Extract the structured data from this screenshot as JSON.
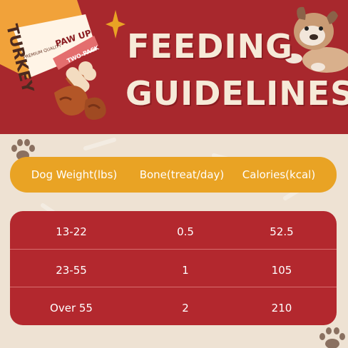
{
  "title": {
    "line1": "FEEDING",
    "line2": "GUIDELINES"
  },
  "package": {
    "brand": "PAW UP",
    "side_text": "TURKEY",
    "subtext": "PREMIUM QUALITY",
    "ribbon": "TWO-PACK"
  },
  "table": {
    "headers": [
      "Dog Weight(lbs)",
      "Bone(treat/day)",
      "Calories(kcal)"
    ],
    "rows": [
      [
        "13-22",
        "0.5",
        "52.5"
      ],
      [
        "23-55",
        "1",
        "105"
      ],
      [
        "Over 55",
        "2",
        "210"
      ]
    ]
  },
  "colors": {
    "banner_red": "#a8282d",
    "title_cream": "#f6ead8",
    "header_orange": "#e9a324",
    "table_red": "#b3282e",
    "background": "#eee2d3"
  },
  "icons": [
    "sparkle-icon",
    "paw-icon",
    "bone-icon",
    "dog-photo",
    "treat-package-image"
  ]
}
